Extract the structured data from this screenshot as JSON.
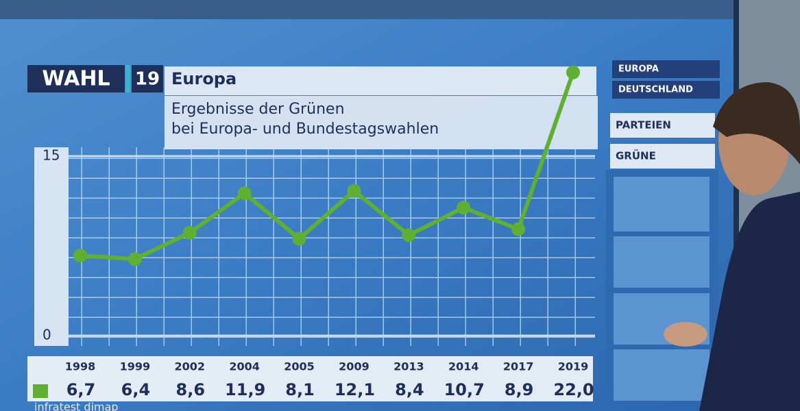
{
  "header": {
    "logo": "WAHL",
    "logo_year": "19",
    "title": "Europa"
  },
  "nav": [
    "EUROPA",
    "DEUTSCHLAND",
    "PARTEIEN",
    "GRÜNE"
  ],
  "chart_data": {
    "type": "line",
    "title": "Ergebnisse der Grünen",
    "subtitle": "bei Europa- und Bundestagswahlen",
    "categories": [
      "1998",
      "1999",
      "2002",
      "2004",
      "2005",
      "2009",
      "2013",
      "2014",
      "2017",
      "2019"
    ],
    "values": [
      6.7,
      6.4,
      8.6,
      11.9,
      8.1,
      12.1,
      8.4,
      10.7,
      8.9,
      22.0
    ],
    "value_labels": [
      "6,7",
      "6,4",
      "8,6",
      "11,9",
      "8,1",
      "12,1",
      "8,4",
      "10,7",
      "8,9",
      "22,0"
    ],
    "color": "#5fb030",
    "ylim": [
      0,
      15
    ],
    "yticks": [
      0,
      15
    ],
    "grid": true,
    "source": "infratest dimap"
  }
}
